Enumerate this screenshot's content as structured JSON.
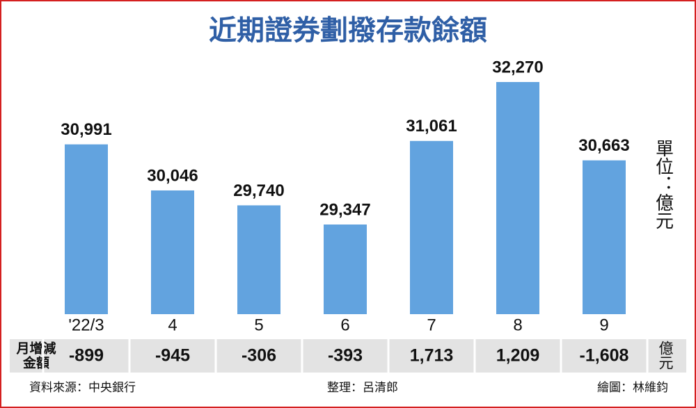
{
  "chart_data": {
    "type": "bar",
    "title": "近期證券劃撥存款餘額",
    "unit": "單位：億元",
    "categories": [
      "'22/3",
      "4",
      "5",
      "6",
      "7",
      "8",
      "9"
    ],
    "values": [
      30991,
      30046,
      29740,
      29347,
      31061,
      32270,
      30663
    ],
    "value_labels": [
      "30,991",
      "30,046",
      "29,740",
      "29,347",
      "31,061",
      "32,270",
      "30,663"
    ],
    "color": "#62a3df"
  },
  "table": {
    "row_label": [
      "月增減",
      "金額"
    ],
    "values": [
      "-899",
      "-945",
      "-306",
      "-393",
      "1,713",
      "1,209",
      "-1,608"
    ],
    "unit": "億元"
  },
  "footer": {
    "source": "資料來源：中央銀行",
    "editor": "整理：呂清郎",
    "artist": "繪圖：林維鈞"
  }
}
